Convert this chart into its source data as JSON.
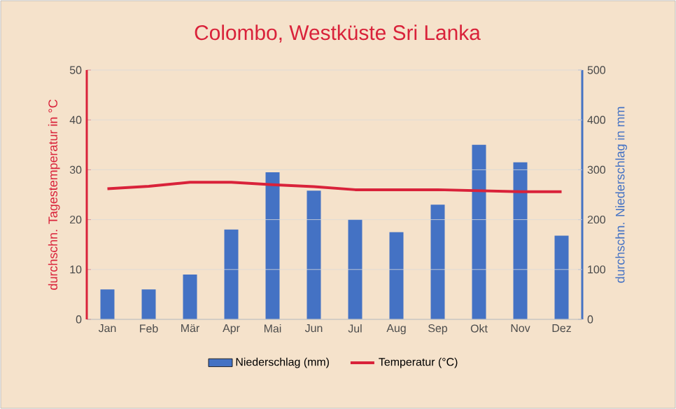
{
  "chart_data": {
    "type": "bar",
    "title": "Colombo, Westküste Sri Lanka",
    "categories": [
      "Jan",
      "Feb",
      "Mär",
      "Apr",
      "Mai",
      "Jun",
      "Jul",
      "Aug",
      "Sep",
      "Okt",
      "Nov",
      "Dez"
    ],
    "series": [
      {
        "name": "Niederschlag (mm)",
        "axis": "y2",
        "color": "#4472c4",
        "values": [
          60,
          60,
          90,
          180,
          295,
          258,
          200,
          175,
          230,
          350,
          315,
          168
        ]
      },
      {
        "name": "Temperatur (°C)",
        "type": "line",
        "color": "#d9223a",
        "values": [
          26.2,
          26.7,
          27.5,
          27.5,
          27.0,
          26.6,
          26.0,
          26.0,
          26.0,
          25.8,
          25.6,
          25.6
        ]
      }
    ],
    "ylabel": "durchschn. Tagestemperatur in °C",
    "y2label": "durchschn. Niederschlag in mm",
    "ylim": [
      0,
      50
    ],
    "yticks": [
      0,
      10,
      20,
      30,
      40,
      50
    ],
    "y2lim": [
      0,
      500
    ],
    "y2ticks": [
      0,
      100,
      200,
      300,
      400,
      500
    ],
    "grid": "y",
    "legend": "bottom",
    "marker": "none",
    "line_style": "solid"
  }
}
